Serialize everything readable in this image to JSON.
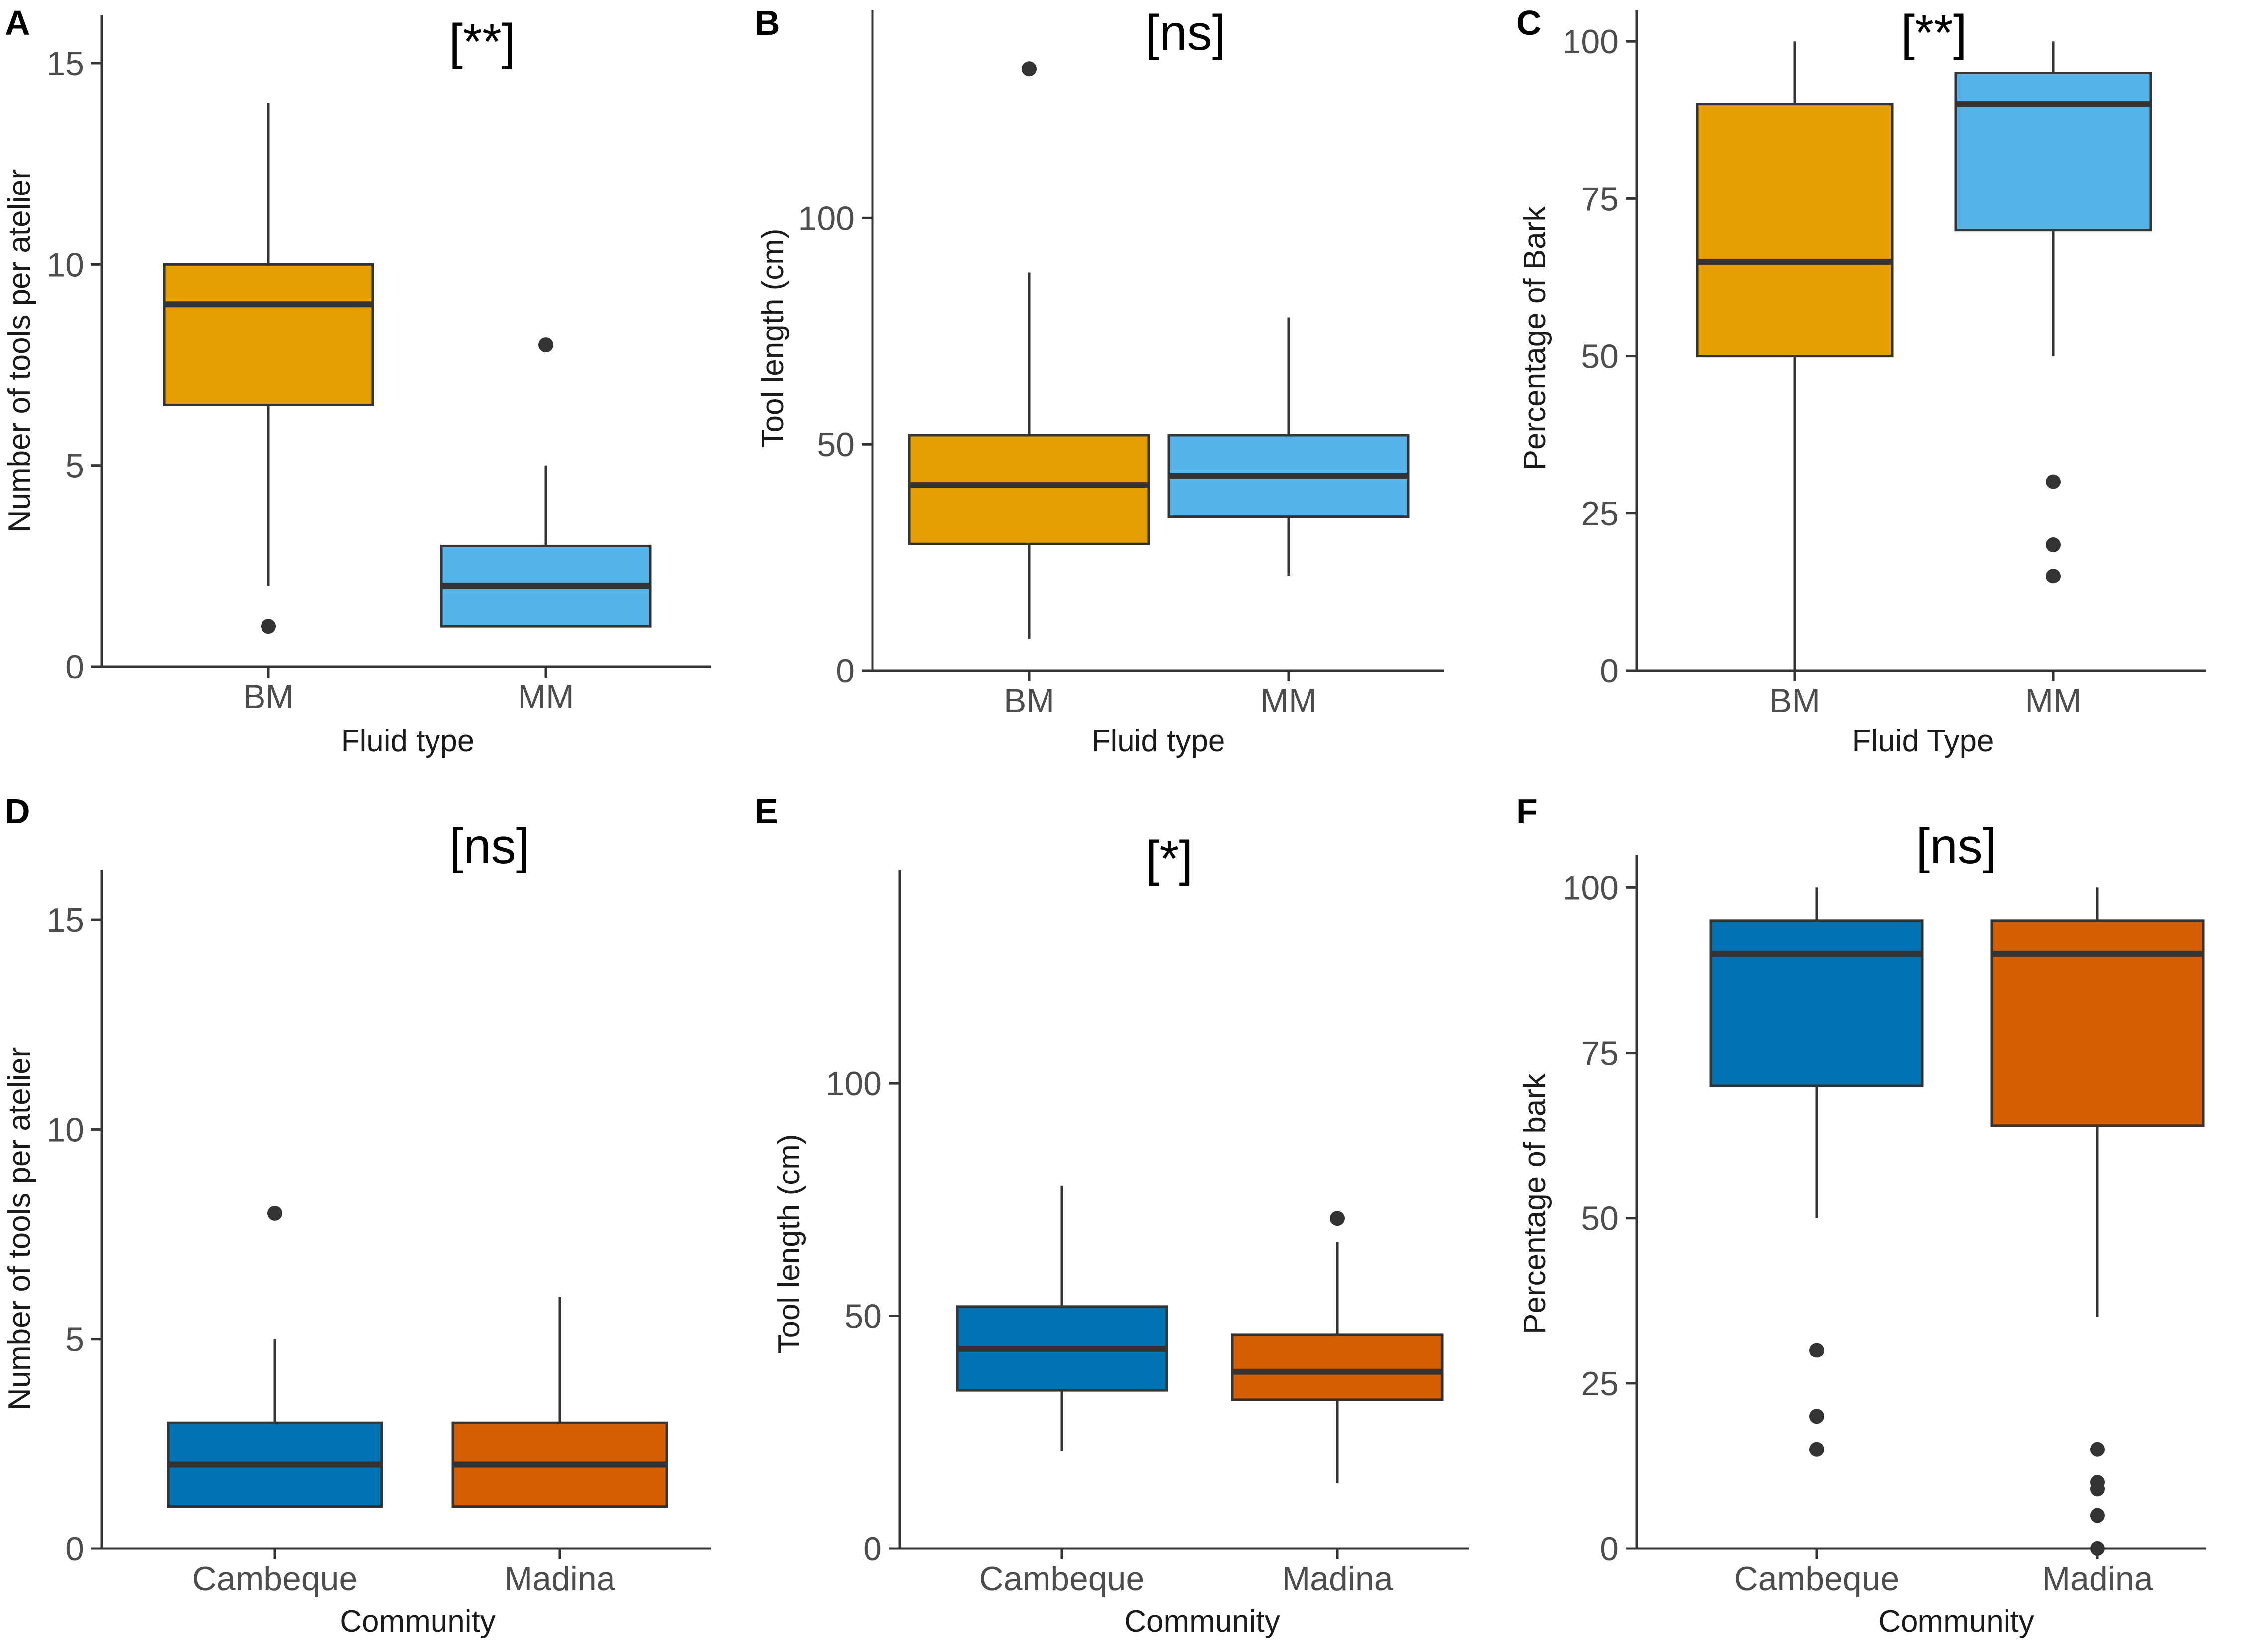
{
  "chart_data": [
    {
      "type": "boxplot",
      "panel_label": "A",
      "significance": "[**]",
      "xlabel": "Fluid type",
      "ylabel": "Number of tools per atelier",
      "ylim": [
        0,
        16.2
      ],
      "yticks": [
        0,
        5,
        10,
        15
      ],
      "categories": [
        "BM",
        "MM"
      ],
      "colors": [
        "#E69F00",
        "#56B4E9"
      ],
      "boxes": [
        {
          "category": "BM",
          "whisker_low": 2,
          "q1": 6.5,
          "median": 9,
          "q3": 10,
          "whisker_high": 14,
          "outliers": [
            1
          ]
        },
        {
          "category": "MM",
          "whisker_low": 1,
          "q1": 1,
          "median": 2,
          "q3": 3,
          "whisker_high": 5,
          "outliers": [
            8
          ]
        }
      ]
    },
    {
      "type": "boxplot",
      "panel_label": "B",
      "significance": "[ns]",
      "xlabel": "Fluid type",
      "ylabel": "Tool length (cm)",
      "ylim": [
        0,
        146
      ],
      "yticks": [
        0,
        50,
        100
      ],
      "categories": [
        "BM",
        "MM"
      ],
      "colors": [
        "#E69F00",
        "#56B4E9"
      ],
      "boxes": [
        {
          "category": "BM",
          "whisker_low": 7,
          "q1": 28,
          "median": 41,
          "q3": 52,
          "whisker_high": 88,
          "outliers": [
            133
          ]
        },
        {
          "category": "MM",
          "whisker_low": 21,
          "q1": 34,
          "median": 43,
          "q3": 52,
          "whisker_high": 78,
          "outliers": []
        }
      ]
    },
    {
      "type": "boxplot",
      "panel_label": "C",
      "significance": "[**]",
      "xlabel": "Fluid Type",
      "ylabel": "Percentage of Bark",
      "ylim": [
        0,
        105
      ],
      "yticks": [
        0,
        25,
        50,
        75,
        100
      ],
      "categories": [
        "BM",
        "MM"
      ],
      "colors": [
        "#E69F00",
        "#56B4E9"
      ],
      "boxes": [
        {
          "category": "BM",
          "whisker_low": 0,
          "q1": 50,
          "median": 65,
          "q3": 90,
          "whisker_high": 100,
          "outliers": []
        },
        {
          "category": "MM",
          "whisker_low": 50,
          "q1": 70,
          "median": 90,
          "q3": 95,
          "whisker_high": 100,
          "outliers": [
            30,
            20,
            15
          ]
        }
      ]
    },
    {
      "type": "boxplot",
      "panel_label": "D",
      "significance": "[ns]",
      "xlabel": "Community",
      "ylabel": "Number of tools per atelier",
      "ylim": [
        0,
        16.2
      ],
      "yticks": [
        0,
        5,
        10,
        15
      ],
      "categories": [
        "Cambeque",
        "Madina"
      ],
      "colors": [
        "#0072B2",
        "#D55E00"
      ],
      "boxes": [
        {
          "category": "Cambeque",
          "whisker_low": 1,
          "q1": 1,
          "median": 2,
          "q3": 3,
          "whisker_high": 5,
          "outliers": [
            8
          ]
        },
        {
          "category": "Madina",
          "whisker_low": 1,
          "q1": 1,
          "median": 2,
          "q3": 3,
          "whisker_high": 6,
          "outliers": []
        }
      ]
    },
    {
      "type": "boxplot",
      "panel_label": "E",
      "significance": "[*]",
      "xlabel": "Community",
      "ylabel": "Tool length (cm)",
      "ylim": [
        0,
        146
      ],
      "yticks": [
        0,
        50,
        100
      ],
      "categories": [
        "Cambeque",
        "Madina"
      ],
      "colors": [
        "#0072B2",
        "#D55E00"
      ],
      "boxes": [
        {
          "category": "Cambeque",
          "whisker_low": 21,
          "q1": 34,
          "median": 43,
          "q3": 52,
          "whisker_high": 78,
          "outliers": []
        },
        {
          "category": "Madina",
          "whisker_low": 14,
          "q1": 32,
          "median": 38,
          "q3": 46,
          "whisker_high": 66,
          "outliers": [
            71
          ]
        }
      ]
    },
    {
      "type": "boxplot",
      "panel_label": "F",
      "significance": "[ns]",
      "xlabel": "Community",
      "ylabel": "Percentage of bark",
      "ylim": [
        0,
        105
      ],
      "yticks": [
        0,
        25,
        50,
        75,
        100
      ],
      "categories": [
        "Cambeque",
        "Madina"
      ],
      "colors": [
        "#0072B2",
        "#D55E00"
      ],
      "boxes": [
        {
          "category": "Cambeque",
          "whisker_low": 50,
          "q1": 70,
          "median": 90,
          "q3": 95,
          "whisker_high": 100,
          "outliers": [
            30,
            20,
            15
          ]
        },
        {
          "category": "Madina",
          "whisker_low": 35,
          "q1": 64,
          "median": 90,
          "q3": 95,
          "whisker_high": 100,
          "outliers": [
            15,
            10,
            9,
            5,
            0
          ]
        }
      ]
    }
  ]
}
